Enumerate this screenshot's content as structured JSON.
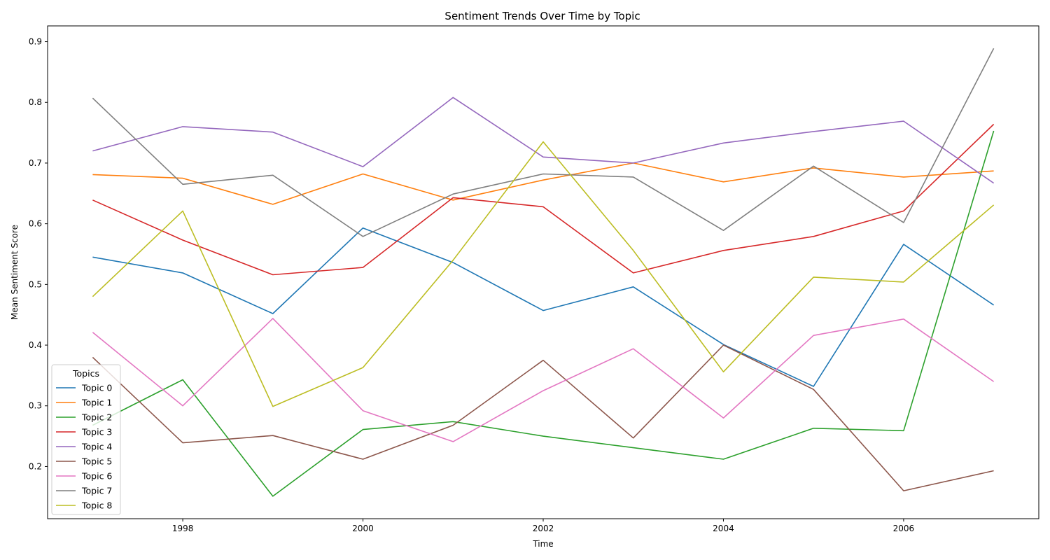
{
  "chart_data": {
    "type": "line",
    "title": "Sentiment Trends Over Time by Topic",
    "xlabel": "Time",
    "ylabel": "Mean Sentiment Score",
    "x": [
      1997,
      1998,
      1999,
      2000,
      2001,
      2002,
      2003,
      2004,
      2005,
      2006,
      2007
    ],
    "x_ticks": [
      "1998",
      "2000",
      "2002",
      "2004",
      "2006"
    ],
    "y_ticks": [
      "0.2",
      "0.3",
      "0.4",
      "0.5",
      "0.6",
      "0.7",
      "0.8",
      "0.9"
    ],
    "xlim": [
      1996.5,
      2007.5
    ],
    "ylim": [
      0.114,
      0.926
    ],
    "grid": false,
    "legend": {
      "title": "Topics",
      "placement": "lower-left"
    },
    "series": [
      {
        "name": "Topic 0",
        "color": "#1f77b4",
        "values": [
          0.545,
          0.519,
          0.452,
          0.593,
          0.536,
          0.457,
          0.496,
          0.401,
          0.332,
          0.566,
          0.466
        ]
      },
      {
        "name": "Topic 1",
        "color": "#ff7f0e",
        "values": [
          0.681,
          0.675,
          0.632,
          0.682,
          0.639,
          0.672,
          0.7,
          0.669,
          0.692,
          0.677,
          0.687
        ]
      },
      {
        "name": "Topic 2",
        "color": "#2ca02c",
        "values": [
          0.268,
          0.343,
          0.151,
          0.261,
          0.274,
          0.25,
          0.231,
          0.212,
          0.263,
          0.259,
          0.753
        ]
      },
      {
        "name": "Topic 3",
        "color": "#d62728",
        "values": [
          0.639,
          0.573,
          0.516,
          0.528,
          0.643,
          0.628,
          0.519,
          0.556,
          0.579,
          0.621,
          0.764
        ]
      },
      {
        "name": "Topic 4",
        "color": "#9467bd",
        "values": [
          0.72,
          0.76,
          0.751,
          0.694,
          0.808,
          0.71,
          0.7,
          0.733,
          0.752,
          0.769,
          0.667
        ]
      },
      {
        "name": "Topic 5",
        "color": "#8c564b",
        "values": [
          0.38,
          0.239,
          0.251,
          0.212,
          0.268,
          0.375,
          0.247,
          0.4,
          0.327,
          0.16,
          0.193
        ]
      },
      {
        "name": "Topic 6",
        "color": "#e377c2",
        "values": [
          0.421,
          0.3,
          0.444,
          0.292,
          0.241,
          0.325,
          0.394,
          0.28,
          0.416,
          0.443,
          0.34
        ]
      },
      {
        "name": "Topic 7",
        "color": "#7f7f7f",
        "values": [
          0.807,
          0.665,
          0.68,
          0.579,
          0.649,
          0.682,
          0.677,
          0.589,
          0.695,
          0.602,
          0.889
        ]
      },
      {
        "name": "Topic 8",
        "color": "#bcbd22",
        "values": [
          0.48,
          0.621,
          0.299,
          0.363,
          0.54,
          0.735,
          0.556,
          0.356,
          0.512,
          0.504,
          0.631
        ]
      }
    ]
  }
}
